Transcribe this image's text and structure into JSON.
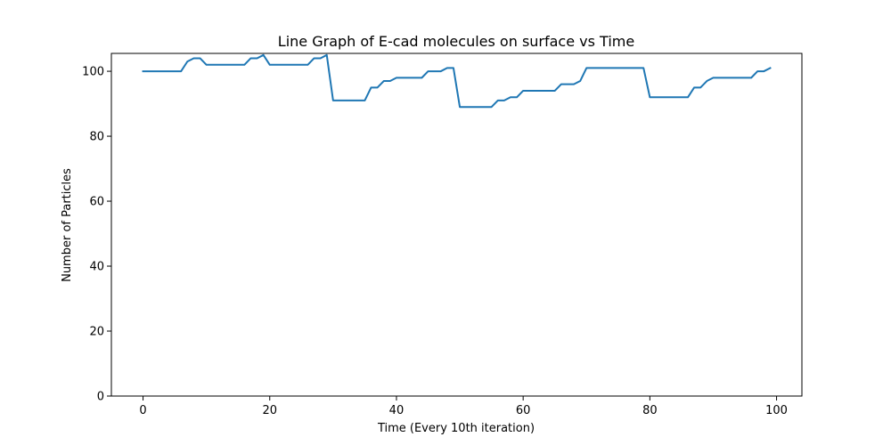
{
  "chart_data": {
    "type": "line",
    "title": "Line Graph of E-cad molecules on surface vs Time",
    "xlabel": "Time (Every 10th iteration)",
    "ylabel": "Number of Particles",
    "xlim": [
      -5,
      104
    ],
    "ylim": [
      0,
      105.5
    ],
    "xticks": [
      0,
      20,
      40,
      60,
      80,
      100
    ],
    "yticks": [
      0,
      20,
      40,
      60,
      80,
      100
    ],
    "grid": false,
    "series": [
      {
        "color": "#1f77b4",
        "x": [
          0,
          1,
          2,
          3,
          4,
          5,
          6,
          7,
          8,
          9,
          10,
          11,
          12,
          13,
          14,
          15,
          16,
          17,
          18,
          19,
          20,
          21,
          22,
          23,
          24,
          25,
          26,
          27,
          28,
          29,
          30,
          31,
          32,
          33,
          34,
          35,
          36,
          37,
          38,
          39,
          40,
          41,
          42,
          43,
          44,
          45,
          46,
          47,
          48,
          49,
          50,
          51,
          52,
          53,
          54,
          55,
          56,
          57,
          58,
          59,
          60,
          61,
          62,
          63,
          64,
          65,
          66,
          67,
          68,
          69,
          70,
          71,
          72,
          73,
          74,
          75,
          76,
          77,
          78,
          79,
          80,
          81,
          82,
          83,
          84,
          85,
          86,
          87,
          88,
          89,
          90,
          91,
          92,
          93,
          94,
          95,
          96,
          97,
          98,
          99
        ],
        "y": [
          100,
          100,
          100,
          100,
          100,
          100,
          100,
          103,
          104,
          104,
          102,
          102,
          102,
          102,
          102,
          102,
          102,
          104,
          104,
          105,
          102,
          102,
          102,
          102,
          102,
          102,
          102,
          104,
          104,
          105,
          91,
          91,
          91,
          91,
          91,
          91,
          95,
          95,
          97,
          97,
          98,
          98,
          98,
          98,
          98,
          100,
          100,
          100,
          101,
          101,
          89,
          89,
          89,
          89,
          89,
          89,
          91,
          91,
          92,
          92,
          94,
          94,
          94,
          94,
          94,
          94,
          96,
          96,
          96,
          97,
          101,
          101,
          101,
          101,
          101,
          101,
          101,
          101,
          101,
          101,
          92,
          92,
          92,
          92,
          92,
          92,
          92,
          95,
          95,
          97,
          98,
          98,
          98,
          98,
          98,
          98,
          98,
          100,
          100,
          101
        ]
      }
    ]
  }
}
